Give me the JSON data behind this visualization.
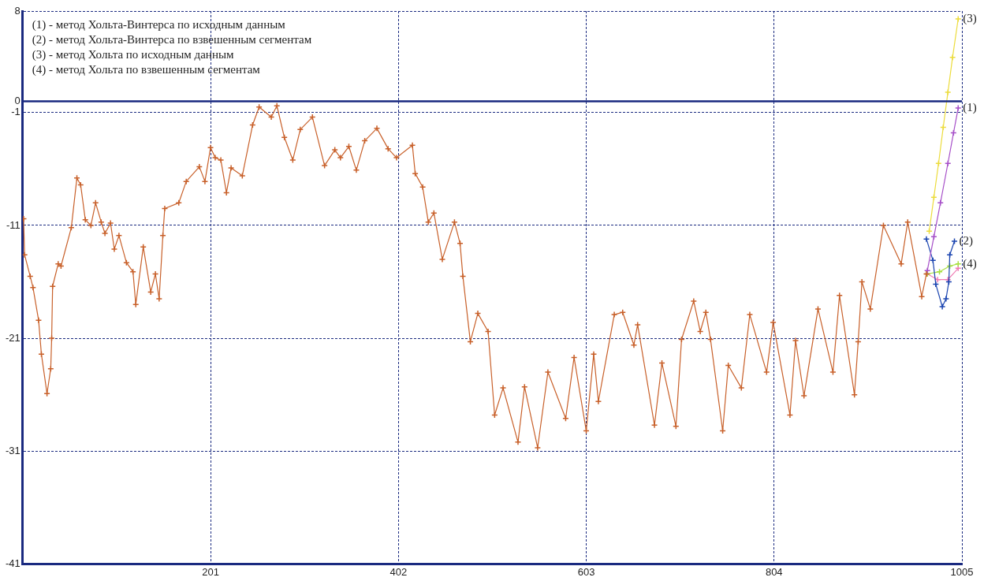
{
  "chart_data": {
    "type": "line",
    "xlim": [
      0,
      1005
    ],
    "xticks": [
      201,
      402,
      603,
      804,
      1005
    ],
    "ylim": [
      -41,
      8
    ],
    "yticks": [
      8,
      0,
      -1,
      -11,
      -21,
      -31,
      -41
    ],
    "grid": true,
    "legend": false,
    "marker": "cross",
    "line_style": "solid",
    "ref_lines": [
      {
        "axis": "y",
        "value": 0,
        "color": "#1a2a80",
        "line_style": "solid"
      }
    ],
    "annotations": [
      "(1) - метод Хольта-Винтерса по исходным данным",
      "(2) - метод Хольта-Винтерса по взвешенным сегментам",
      "(3) - метод Хольта по исходным данным",
      "(4) - метод Хольта по взвешенным сегментам"
    ],
    "series": [
      {
        "color": "#c8602a",
        "x": [
          1,
          2,
          8,
          11,
          17,
          20,
          26,
          30,
          31,
          32,
          38,
          41,
          52,
          58,
          62,
          67,
          73,
          78,
          84,
          88,
          94,
          98,
          103,
          111,
          118,
          121,
          129,
          137,
          142,
          146,
          150,
          152,
          167,
          175,
          189,
          195,
          201,
          206,
          212,
          218,
          223,
          235,
          246,
          253,
          266,
          272,
          280,
          289,
          297,
          310,
          323,
          334,
          340,
          349,
          357,
          366,
          379,
          391,
          400,
          417,
          420,
          428,
          434,
          440,
          449,
          462,
          468,
          471,
          479,
          487,
          498,
          505,
          514,
          530,
          537,
          551,
          562,
          581,
          590,
          603,
          611,
          616,
          633,
          642,
          654,
          658,
          676,
          684,
          699,
          705,
          718,
          725,
          731,
          736,
          749,
          755,
          769,
          778,
          796,
          803,
          821,
          827,
          836,
          851,
          867,
          874,
          890,
          894,
          898,
          907,
          921,
          940,
          947,
          962,
          967
        ],
        "values": [
          -10.4,
          -13.6,
          -15.5,
          -16.5,
          -19.4,
          -22.4,
          -25.9,
          -23.7,
          -21,
          -16.4,
          -14.4,
          -14.6,
          -11.2,
          -6.8,
          -7.4,
          -10.5,
          -11,
          -9,
          -10.7,
          -11.7,
          -10.8,
          -13.1,
          -11.9,
          -14.3,
          -15.1,
          -18,
          -12.9,
          -16.9,
          -15.3,
          -17.5,
          -11.9,
          -9.5,
          -9,
          -7.1,
          -5.8,
          -7.1,
          -4.1,
          -5,
          -5.2,
          -8.1,
          -5.9,
          -6.6,
          -2.1,
          -0.5,
          -1.4,
          -0.4,
          -3.2,
          -5.2,
          -2.5,
          -1.4,
          -5.7,
          -4.3,
          -5,
          -4,
          -6.1,
          -3.5,
          -2.4,
          -4.2,
          -5,
          -3.9,
          -6.4,
          -7.6,
          -10.7,
          -9.9,
          -14,
          -10.7,
          -12.6,
          -15.5,
          -21.3,
          -18.8,
          -20.4,
          -27.8,
          -25.4,
          -30.2,
          -25.3,
          -30.7,
          -24,
          -28.1,
          -22.7,
          -29.2,
          -22.4,
          -26.6,
          -18.9,
          -18.7,
          -21.6,
          -19.8,
          -28.7,
          -23.2,
          -28.8,
          -21.1,
          -17.7,
          -20.4,
          -18.7,
          -21.1,
          -29.2,
          -23.4,
          -25.4,
          -18.9,
          -24,
          -19.6,
          -27.8,
          -21.2,
          -26.1,
          -18.4,
          -24,
          -17.2,
          -26,
          -21.3,
          -16,
          -18.4,
          -11,
          -14.4,
          -10.7,
          -17.3,
          -15.3
        ]
      },
      {
        "name": "(3)",
        "color": "#ecdc3c",
        "x": [
          970,
          975,
          980,
          985,
          990,
          995,
          1001
        ],
        "values": [
          -11.5,
          -8.5,
          -5.5,
          -2.3,
          0.8,
          3.9,
          7.3
        ]
      },
      {
        "name": "(1)",
        "color": "#a64fc8",
        "x": [
          968,
          975,
          982,
          990,
          996,
          1001
        ],
        "values": [
          -15,
          -12,
          -9,
          -5.5,
          -2.8,
          -0.6
        ]
      },
      {
        "name": "(2)",
        "color": "#1a44b0",
        "x": [
          967,
          974,
          977,
          984,
          988,
          991,
          992,
          997
        ],
        "values": [
          -12.2,
          -14.1,
          -16.2,
          -18.2,
          -17.5,
          -16,
          -13.6,
          -12.4
        ]
      },
      {
        "name": "(4)",
        "color": "#a8e040",
        "x": [
          968,
          981,
          992,
          1001
        ],
        "values": [
          -15.3,
          -15.1,
          -14.6,
          -14.4
        ]
      },
      {
        "color": "#f07cb4",
        "x": [
          968,
          979,
          990,
          1001
        ],
        "values": [
          -15.3,
          -15.8,
          -15.8,
          -14.8
        ]
      }
    ]
  }
}
